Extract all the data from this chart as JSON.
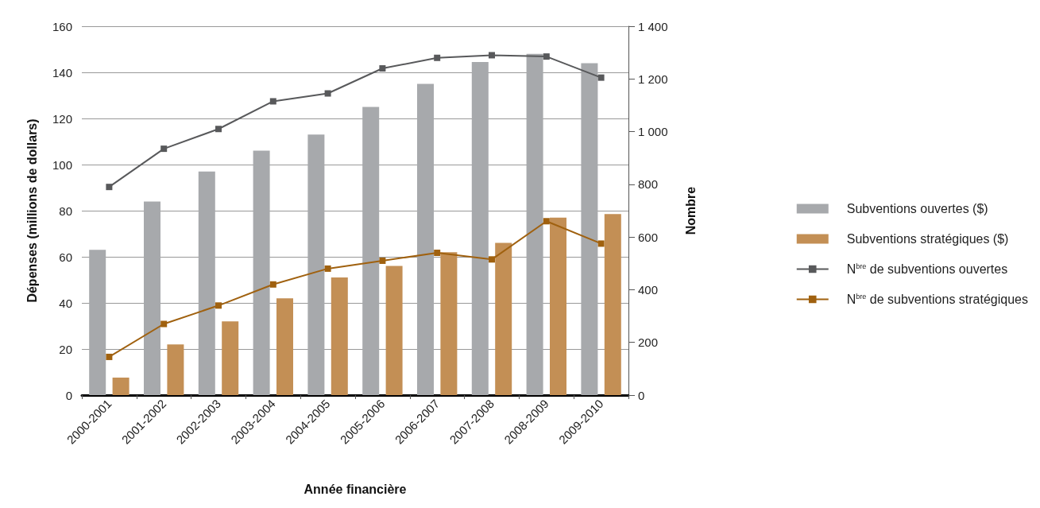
{
  "chart_data": {
    "type": "bar",
    "xlabel": "Année financière",
    "ylabel": "Dépenses (millions de dollars)",
    "y2label": "Nombre",
    "categories": [
      "2000-2001",
      "2001-2002",
      "2002-2003",
      "2003-2004",
      "2004-2005",
      "2005-2006",
      "2006-2007",
      "2007-2008",
      "2008-2009",
      "2009-2010"
    ],
    "series": [
      {
        "name": "Subventions ouvertes ($)",
        "color": "#a7a9ac",
        "values": [
          63,
          84,
          97,
          106,
          113,
          125,
          135,
          144.5,
          148,
          144
        ]
      },
      {
        "name": "Subventions stratégiques ($)",
        "color": "#c38f55",
        "values": [
          7.6,
          22,
          32,
          42,
          51,
          56,
          62,
          66,
          77,
          78.5
        ]
      },
      {
        "name": "N$^{bre}$ de subventions ouvertes",
        "type": "line",
        "axis": "y2",
        "color": "#58595b",
        "values": [
          790,
          935,
          1010,
          1115,
          1145,
          1240,
          1280,
          1290,
          1285,
          1205
        ]
      },
      {
        "name": "N$^{bre}$ de subventions stratégiques",
        "type": "line",
        "axis": "y2",
        "color": "#a0610f",
        "values": [
          145,
          270,
          340,
          420,
          480,
          510,
          540,
          515,
          660,
          575
        ]
      }
    ],
    "ylim": [
      0,
      160
    ],
    "yticks": [
      0,
      20,
      40,
      60,
      80,
      100,
      120,
      140,
      160
    ],
    "y2lim": [
      0,
      1400
    ],
    "y2ticks": [
      0,
      {
        "value": 200,
        "label": "200"
      },
      {
        "value": 400,
        "label": "400"
      },
      {
        "value": 600,
        "label": "600"
      },
      {
        "value": 800,
        "label": "800"
      },
      {
        "value": 1000,
        "label": "1 000"
      },
      {
        "value": 1200,
        "label": "1 200"
      },
      {
        "value": 1400,
        "label": "1 400"
      }
    ],
    "grid": "y",
    "legend": "right",
    "marker": "square",
    "line_style": "solid"
  }
}
